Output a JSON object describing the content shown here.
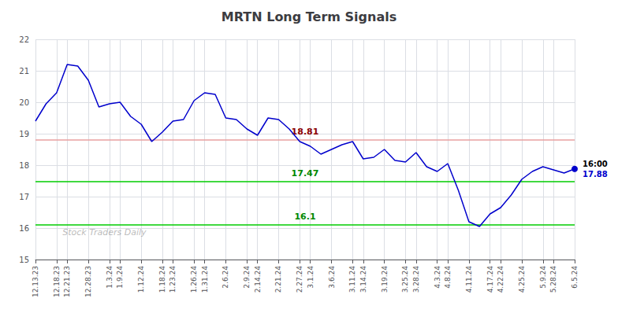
{
  "chart_data": {
    "type": "line",
    "title": "MRTN Long Term Signals",
    "categories": [
      "12.13.23",
      null,
      "12.18.23",
      "12.21.23",
      null,
      "12.28.23",
      null,
      "1.3.24",
      "1.9.24",
      null,
      "1.12.24",
      null,
      "1.18.24",
      "1.23.24",
      null,
      "1.26.24",
      "1.31.24",
      null,
      "2.6.24",
      null,
      "2.9.24",
      "2.14.24",
      null,
      "2.21.24",
      null,
      "2.27.24",
      "3.1.24",
      null,
      "3.6.24",
      null,
      "3.11.24",
      "3.14.24",
      null,
      "3.19.24",
      null,
      "3.25.24",
      "3.28.24",
      null,
      "4.3.24",
      "4.8.24",
      null,
      "4.11.24",
      null,
      "4.17.24",
      "4.22.24",
      null,
      "4.25.24",
      null,
      "5.9.24",
      "5.28.24",
      null,
      "6.5.24"
    ],
    "values": [
      19.4,
      19.95,
      20.3,
      21.2,
      21.15,
      20.7,
      19.85,
      19.95,
      20.0,
      19.55,
      19.3,
      18.75,
      19.05,
      19.4,
      19.45,
      20.05,
      20.3,
      20.25,
      19.5,
      19.45,
      19.15,
      18.95,
      19.5,
      19.45,
      19.15,
      18.75,
      18.6,
      18.35,
      18.5,
      18.65,
      18.75,
      18.2,
      18.25,
      18.5,
      18.15,
      18.1,
      18.4,
      17.95,
      17.8,
      18.05,
      17.2,
      16.2,
      16.05,
      16.45,
      16.65,
      17.05,
      17.55,
      17.8,
      17.95,
      17.85,
      17.75,
      17.88
    ],
    "color": "#0000cc",
    "ylim": [
      15,
      22
    ],
    "yticks": [
      15,
      16,
      17,
      18,
      19,
      20,
      21,
      22
    ],
    "grid": true,
    "reference_lines": [
      {
        "value": 18.81,
        "label": "18.81",
        "color": "#e8a0a0",
        "label_color": "#8b0000"
      },
      {
        "value": 17.47,
        "label": "17.47",
        "color": "#00cc00",
        "label_color": "#008800"
      },
      {
        "value": 16.1,
        "label": "16.1",
        "color": "#00cc00",
        "label_color": "#008800"
      }
    ],
    "last_point": {
      "value": 17.88,
      "label": "17.88",
      "time": "16:00",
      "color": "#0000cc"
    },
    "watermark": "Stock Traders Daily"
  }
}
